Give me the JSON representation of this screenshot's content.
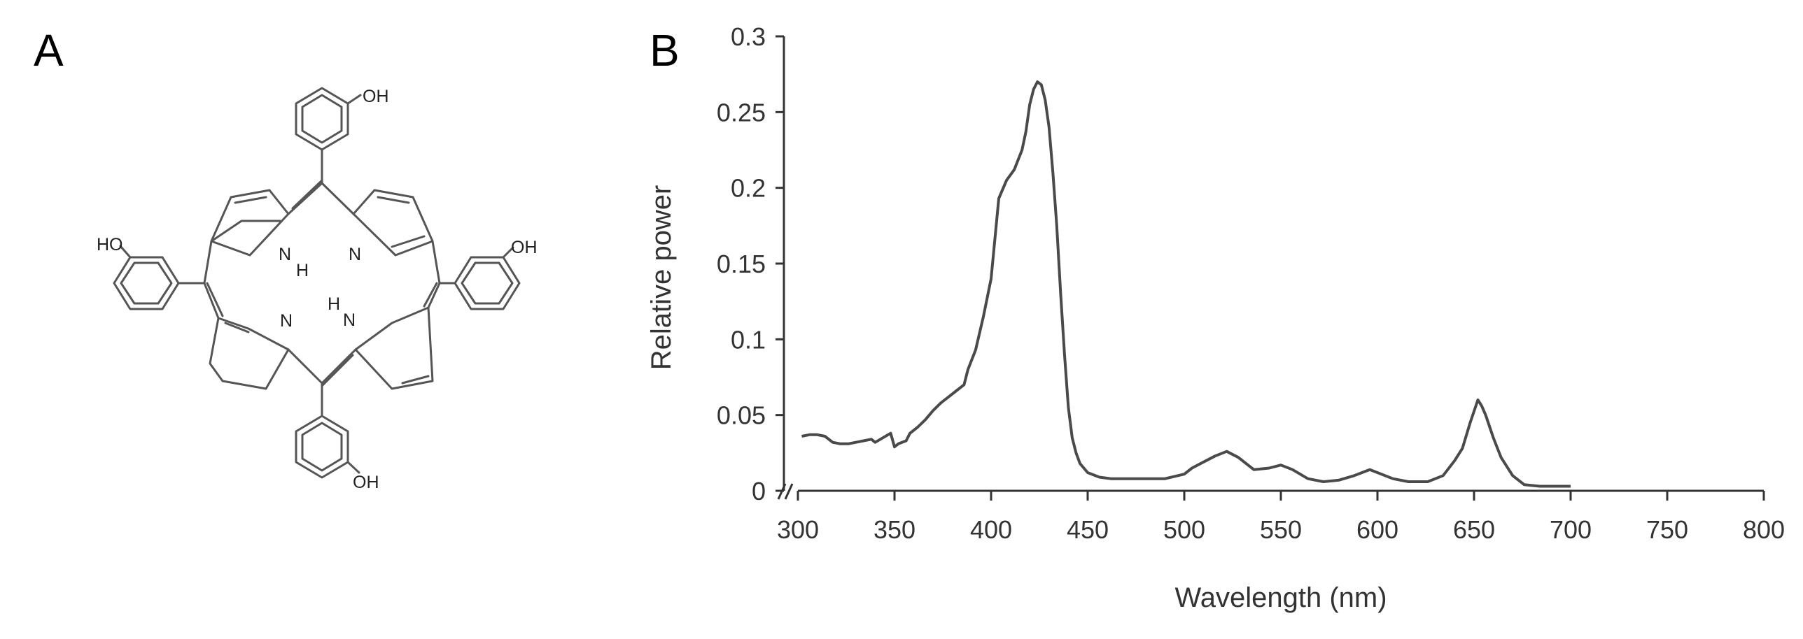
{
  "panels": {
    "a_label": "A",
    "b_label": "B"
  },
  "molecule": {
    "labels": {
      "oh_top": "OH",
      "oh_left": "HO",
      "oh_right": "OH",
      "oh_bottom": "OH",
      "n_top_left": "N",
      "h_top_left": "H",
      "n_top_right": "N",
      "n_bottom_left": "N",
      "h_bottom_right": "H",
      "n_bottom_right": "N"
    }
  },
  "colors": {
    "line": "#4a4a4a",
    "axis": "#333333",
    "text": "#333333"
  },
  "chart_data": {
    "type": "line",
    "title": "",
    "xlabel": "Wavelength (nm)",
    "ylabel": "Relative power",
    "xlim": [
      300,
      800
    ],
    "ylim": [
      0,
      0.3
    ],
    "xticks": [
      300,
      350,
      400,
      450,
      500,
      550,
      600,
      650,
      700,
      750,
      800
    ],
    "xtick_labels": [
      "300",
      "350",
      "400",
      "450",
      "500",
      "550",
      "600",
      "650",
      "700",
      "750",
      "800"
    ],
    "yticks": [
      0,
      0.05,
      0.1,
      0.15,
      0.2,
      0.25,
      0.3
    ],
    "ytick_labels": [
      "0",
      "0.05",
      "0.1",
      "0.15",
      "0.2",
      "0.25",
      "0.3"
    ],
    "axis_break": "//",
    "grid": false,
    "series": [
      {
        "name": "Relative power",
        "x": [
          302,
          306,
          310,
          314,
          318,
          322,
          326,
          330,
          334,
          338,
          340,
          344,
          348,
          350,
          352,
          356,
          358,
          362,
          366,
          370,
          374,
          378,
          382,
          386,
          388,
          392,
          396,
          400,
          404,
          408,
          412,
          416,
          418,
          420,
          422,
          424,
          426,
          428,
          430,
          432,
          434,
          436,
          438,
          440,
          442,
          444,
          446,
          450,
          456,
          462,
          470,
          480,
          490,
          500,
          504,
          510,
          516,
          522,
          528,
          536,
          544,
          550,
          556,
          564,
          572,
          580,
          588,
          596,
          600,
          608,
          616,
          626,
          634,
          640,
          644,
          648,
          652,
          654,
          656,
          660,
          664,
          670,
          676,
          684,
          692,
          700
        ],
        "y": [
          0.036,
          0.037,
          0.037,
          0.036,
          0.032,
          0.031,
          0.031,
          0.032,
          0.033,
          0.034,
          0.032,
          0.035,
          0.038,
          0.029,
          0.031,
          0.033,
          0.038,
          0.042,
          0.047,
          0.053,
          0.058,
          0.062,
          0.066,
          0.07,
          0.08,
          0.093,
          0.115,
          0.14,
          0.193,
          0.205,
          0.212,
          0.225,
          0.237,
          0.255,
          0.265,
          0.27,
          0.268,
          0.258,
          0.24,
          0.21,
          0.175,
          0.13,
          0.09,
          0.055,
          0.035,
          0.025,
          0.018,
          0.012,
          0.009,
          0.008,
          0.008,
          0.008,
          0.008,
          0.011,
          0.015,
          0.019,
          0.023,
          0.026,
          0.022,
          0.014,
          0.015,
          0.017,
          0.014,
          0.008,
          0.006,
          0.007,
          0.01,
          0.014,
          0.012,
          0.008,
          0.006,
          0.006,
          0.01,
          0.02,
          0.028,
          0.045,
          0.06,
          0.056,
          0.05,
          0.035,
          0.022,
          0.01,
          0.004,
          0.003,
          0.003,
          0.003
        ]
      }
    ]
  }
}
